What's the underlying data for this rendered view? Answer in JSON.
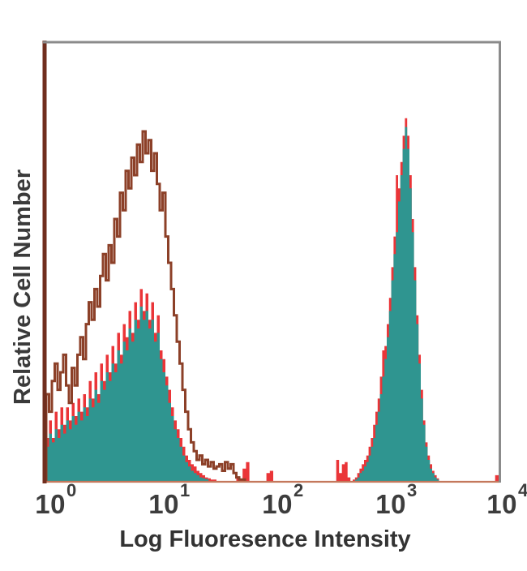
{
  "figure": {
    "background": "#ffffff",
    "text_color": "#3d3d3d",
    "frame": {
      "top_border_color": "#8b8b8b",
      "right_border_color": "#8b8b8b",
      "left_axis_color": "#702e1e",
      "bottom_axis_color": "#c4785c"
    }
  },
  "chart_data": {
    "type": "area",
    "variant": "flow-cytometry-overlay-histogram",
    "title": "",
    "xlabel": "Log Fluoresence Intensity",
    "ylabel": "Relative Cell Number",
    "x_scale": "log10",
    "x_log_range": [
      0,
      4
    ],
    "ylim": [
      0,
      1
    ],
    "grid": false,
    "legend": false,
    "x_ticks": [
      {
        "base": "10",
        "exp": "0",
        "value": 1
      },
      {
        "base": "10",
        "exp": "1",
        "value": 10
      },
      {
        "base": "10",
        "exp": "2",
        "value": 100
      },
      {
        "base": "10",
        "exp": "3",
        "value": 1000
      },
      {
        "base": "10",
        "exp": "4",
        "value": 10000
      }
    ],
    "series": [
      {
        "name": "stained-red-outline",
        "style": "fill",
        "color": "#ea3538",
        "points": [
          [
            0.0,
            0.1
          ],
          [
            0.025,
            0.14
          ],
          [
            0.05,
            0.1
          ],
          [
            0.075,
            0.16
          ],
          [
            0.1,
            0.12
          ],
          [
            0.125,
            0.17
          ],
          [
            0.15,
            0.13
          ],
          [
            0.175,
            0.17
          ],
          [
            0.2,
            0.14
          ],
          [
            0.225,
            0.18
          ],
          [
            0.25,
            0.15
          ],
          [
            0.275,
            0.19
          ],
          [
            0.3,
            0.16
          ],
          [
            0.325,
            0.2
          ],
          [
            0.35,
            0.17
          ],
          [
            0.375,
            0.23
          ],
          [
            0.4,
            0.19
          ],
          [
            0.425,
            0.25
          ],
          [
            0.45,
            0.2
          ],
          [
            0.475,
            0.27
          ],
          [
            0.5,
            0.23
          ],
          [
            0.525,
            0.29
          ],
          [
            0.55,
            0.25
          ],
          [
            0.575,
            0.31
          ],
          [
            0.6,
            0.27
          ],
          [
            0.625,
            0.34
          ],
          [
            0.65,
            0.29
          ],
          [
            0.675,
            0.36
          ],
          [
            0.7,
            0.33
          ],
          [
            0.725,
            0.39
          ],
          [
            0.75,
            0.34
          ],
          [
            0.775,
            0.41
          ],
          [
            0.8,
            0.37
          ],
          [
            0.825,
            0.44
          ],
          [
            0.85,
            0.39
          ],
          [
            0.875,
            0.43
          ],
          [
            0.9,
            0.37
          ],
          [
            0.925,
            0.41
          ],
          [
            0.95,
            0.34
          ],
          [
            0.975,
            0.38
          ],
          [
            1.0,
            0.3
          ],
          [
            1.025,
            0.28
          ],
          [
            1.05,
            0.24
          ],
          [
            1.075,
            0.21
          ],
          [
            1.1,
            0.17
          ],
          [
            1.125,
            0.14
          ],
          [
            1.15,
            0.12
          ],
          [
            1.175,
            0.1
          ],
          [
            1.2,
            0.08
          ],
          [
            1.225,
            0.06
          ],
          [
            1.25,
            0.05
          ],
          [
            1.275,
            0.04
          ],
          [
            1.3,
            0.035
          ],
          [
            1.325,
            0.025
          ],
          [
            1.35,
            0.02
          ],
          [
            1.375,
            0.015
          ],
          [
            1.4,
            0.01
          ],
          [
            1.425,
            0.008
          ],
          [
            1.45,
            0.005
          ],
          [
            1.5,
            0.0
          ],
          [
            1.675,
            0.01
          ],
          [
            1.7,
            0.005
          ],
          [
            1.73,
            0.03
          ],
          [
            1.76,
            0.045
          ],
          [
            1.79,
            0.0
          ],
          [
            1.94,
            0.02
          ],
          [
            1.97,
            0.025
          ],
          [
            2.0,
            0.0
          ],
          [
            2.54,
            0.0
          ],
          [
            2.555,
            0.05
          ],
          [
            2.58,
            0.02
          ],
          [
            2.605,
            0.04
          ],
          [
            2.63,
            0.045
          ],
          [
            2.655,
            0.01
          ],
          [
            2.68,
            0.0
          ],
          [
            2.7,
            0.005
          ],
          [
            2.72,
            0.01
          ],
          [
            2.74,
            0.02
          ],
          [
            2.76,
            0.03
          ],
          [
            2.78,
            0.04
          ],
          [
            2.8,
            0.05
          ],
          [
            2.82,
            0.06
          ],
          [
            2.84,
            0.08
          ],
          [
            2.86,
            0.1
          ],
          [
            2.88,
            0.13
          ],
          [
            2.9,
            0.16
          ],
          [
            2.92,
            0.19
          ],
          [
            2.94,
            0.24
          ],
          [
            2.96,
            0.3
          ],
          [
            2.98,
            0.31
          ],
          [
            3.0,
            0.36
          ],
          [
            3.02,
            0.42
          ],
          [
            3.04,
            0.49
          ],
          [
            3.06,
            0.56
          ],
          [
            3.08,
            0.7
          ],
          [
            3.1,
            0.67
          ],
          [
            3.12,
            0.73
          ],
          [
            3.14,
            0.79
          ],
          [
            3.16,
            0.83
          ],
          [
            3.18,
            0.79
          ],
          [
            3.2,
            0.7
          ],
          [
            3.22,
            0.6
          ],
          [
            3.24,
            0.49
          ],
          [
            3.26,
            0.38
          ],
          [
            3.28,
            0.29
          ],
          [
            3.3,
            0.21
          ],
          [
            3.32,
            0.14
          ],
          [
            3.34,
            0.09
          ],
          [
            3.36,
            0.06
          ],
          [
            3.38,
            0.04
          ],
          [
            3.4,
            0.025
          ],
          [
            3.42,
            0.015
          ],
          [
            3.44,
            0.008
          ],
          [
            3.46,
            0.0
          ],
          [
            3.94,
            0.0
          ],
          [
            3.955,
            0.015
          ],
          [
            3.985,
            0.015
          ],
          [
            4.0,
            0.0
          ]
        ]
      },
      {
        "name": "stained-teal-fill",
        "style": "fill",
        "color": "#2f9590",
        "points": [
          [
            0.0,
            0.08
          ],
          [
            0.025,
            0.11
          ],
          [
            0.05,
            0.09
          ],
          [
            0.075,
            0.12
          ],
          [
            0.1,
            0.1
          ],
          [
            0.125,
            0.13
          ],
          [
            0.15,
            0.11
          ],
          [
            0.175,
            0.14
          ],
          [
            0.2,
            0.12
          ],
          [
            0.225,
            0.15
          ],
          [
            0.25,
            0.13
          ],
          [
            0.275,
            0.16
          ],
          [
            0.3,
            0.14
          ],
          [
            0.325,
            0.17
          ],
          [
            0.35,
            0.15
          ],
          [
            0.375,
            0.19
          ],
          [
            0.4,
            0.17
          ],
          [
            0.425,
            0.21
          ],
          [
            0.45,
            0.18
          ],
          [
            0.475,
            0.23
          ],
          [
            0.5,
            0.21
          ],
          [
            0.525,
            0.25
          ],
          [
            0.55,
            0.23
          ],
          [
            0.575,
            0.27
          ],
          [
            0.6,
            0.25
          ],
          [
            0.625,
            0.3
          ],
          [
            0.65,
            0.27
          ],
          [
            0.675,
            0.32
          ],
          [
            0.7,
            0.3
          ],
          [
            0.725,
            0.35
          ],
          [
            0.75,
            0.32
          ],
          [
            0.775,
            0.37
          ],
          [
            0.8,
            0.35
          ],
          [
            0.825,
            0.4
          ],
          [
            0.85,
            0.37
          ],
          [
            0.875,
            0.39
          ],
          [
            0.9,
            0.35
          ],
          [
            0.925,
            0.37
          ],
          [
            0.95,
            0.32
          ],
          [
            0.975,
            0.34
          ],
          [
            1.0,
            0.28
          ],
          [
            1.025,
            0.25
          ],
          [
            1.05,
            0.22
          ],
          [
            1.075,
            0.18
          ],
          [
            1.1,
            0.15
          ],
          [
            1.125,
            0.12
          ],
          [
            1.15,
            0.1
          ],
          [
            1.175,
            0.08
          ],
          [
            1.2,
            0.06
          ],
          [
            1.225,
            0.045
          ],
          [
            1.25,
            0.035
          ],
          [
            1.275,
            0.025
          ],
          [
            1.3,
            0.02
          ],
          [
            1.325,
            0.015
          ],
          [
            1.35,
            0.01
          ],
          [
            1.375,
            0.008
          ],
          [
            1.4,
            0.006
          ],
          [
            1.43,
            0.0
          ],
          [
            2.7,
            0.0
          ],
          [
            2.72,
            0.005
          ],
          [
            2.74,
            0.01
          ],
          [
            2.76,
            0.02
          ],
          [
            2.78,
            0.025
          ],
          [
            2.8,
            0.035
          ],
          [
            2.82,
            0.045
          ],
          [
            2.84,
            0.06
          ],
          [
            2.86,
            0.08
          ],
          [
            2.88,
            0.1
          ],
          [
            2.9,
            0.13
          ],
          [
            2.92,
            0.16
          ],
          [
            2.94,
            0.2
          ],
          [
            2.96,
            0.24
          ],
          [
            2.98,
            0.28
          ],
          [
            3.0,
            0.33
          ],
          [
            3.02,
            0.39
          ],
          [
            3.04,
            0.46
          ],
          [
            3.06,
            0.52
          ],
          [
            3.08,
            0.57
          ],
          [
            3.1,
            0.64
          ],
          [
            3.12,
            0.7
          ],
          [
            3.14,
            0.76
          ],
          [
            3.16,
            0.81
          ],
          [
            3.18,
            0.76
          ],
          [
            3.2,
            0.67
          ],
          [
            3.22,
            0.57
          ],
          [
            3.24,
            0.46
          ],
          [
            3.26,
            0.36
          ],
          [
            3.28,
            0.27
          ],
          [
            3.3,
            0.19
          ],
          [
            3.32,
            0.13
          ],
          [
            3.34,
            0.08
          ],
          [
            3.36,
            0.05
          ],
          [
            3.38,
            0.03
          ],
          [
            3.4,
            0.02
          ],
          [
            3.42,
            0.01
          ],
          [
            3.44,
            0.005
          ],
          [
            3.46,
            0.0
          ]
        ]
      },
      {
        "name": "control-open-outline",
        "style": "line",
        "color": "#8c4028",
        "stroke_width": 3,
        "points": [
          [
            0.0,
            0.2
          ],
          [
            0.025,
            0.16
          ],
          [
            0.05,
            0.23
          ],
          [
            0.075,
            0.27
          ],
          [
            0.1,
            0.21
          ],
          [
            0.125,
            0.25
          ],
          [
            0.15,
            0.29
          ],
          [
            0.175,
            0.22
          ],
          [
            0.2,
            0.18
          ],
          [
            0.225,
            0.26
          ],
          [
            0.25,
            0.22
          ],
          [
            0.275,
            0.29
          ],
          [
            0.3,
            0.33
          ],
          [
            0.325,
            0.28
          ],
          [
            0.35,
            0.36
          ],
          [
            0.375,
            0.41
          ],
          [
            0.4,
            0.37
          ],
          [
            0.425,
            0.44
          ],
          [
            0.45,
            0.4
          ],
          [
            0.475,
            0.47
          ],
          [
            0.5,
            0.52
          ],
          [
            0.525,
            0.46
          ],
          [
            0.55,
            0.54
          ],
          [
            0.575,
            0.5
          ],
          [
            0.6,
            0.6
          ],
          [
            0.625,
            0.56
          ],
          [
            0.65,
            0.66
          ],
          [
            0.675,
            0.62
          ],
          [
            0.7,
            0.71
          ],
          [
            0.725,
            0.67
          ],
          [
            0.75,
            0.74
          ],
          [
            0.775,
            0.7
          ],
          [
            0.8,
            0.77
          ],
          [
            0.825,
            0.73
          ],
          [
            0.85,
            0.8
          ],
          [
            0.875,
            0.75
          ],
          [
            0.9,
            0.78
          ],
          [
            0.925,
            0.71
          ],
          [
            0.95,
            0.75
          ],
          [
            0.975,
            0.68
          ],
          [
            1.0,
            0.62
          ],
          [
            1.025,
            0.66
          ],
          [
            1.05,
            0.56
          ],
          [
            1.075,
            0.5
          ],
          [
            1.1,
            0.44
          ],
          [
            1.125,
            0.38
          ],
          [
            1.15,
            0.32
          ],
          [
            1.175,
            0.27
          ],
          [
            1.2,
            0.21
          ],
          [
            1.225,
            0.16
          ],
          [
            1.25,
            0.12
          ],
          [
            1.275,
            0.09
          ],
          [
            1.3,
            0.07
          ],
          [
            1.325,
            0.05
          ],
          [
            1.35,
            0.06
          ],
          [
            1.375,
            0.04
          ],
          [
            1.4,
            0.05
          ],
          [
            1.425,
            0.035
          ],
          [
            1.45,
            0.045
          ],
          [
            1.475,
            0.03
          ],
          [
            1.5,
            0.035
          ],
          [
            1.525,
            0.04
          ],
          [
            1.55,
            0.025
          ],
          [
            1.575,
            0.045
          ],
          [
            1.6,
            0.03
          ],
          [
            1.625,
            0.04
          ],
          [
            1.65,
            0.02
          ],
          [
            1.675,
            0.01
          ],
          [
            1.7,
            0.005
          ],
          [
            1.75,
            0.0
          ]
        ]
      }
    ]
  }
}
